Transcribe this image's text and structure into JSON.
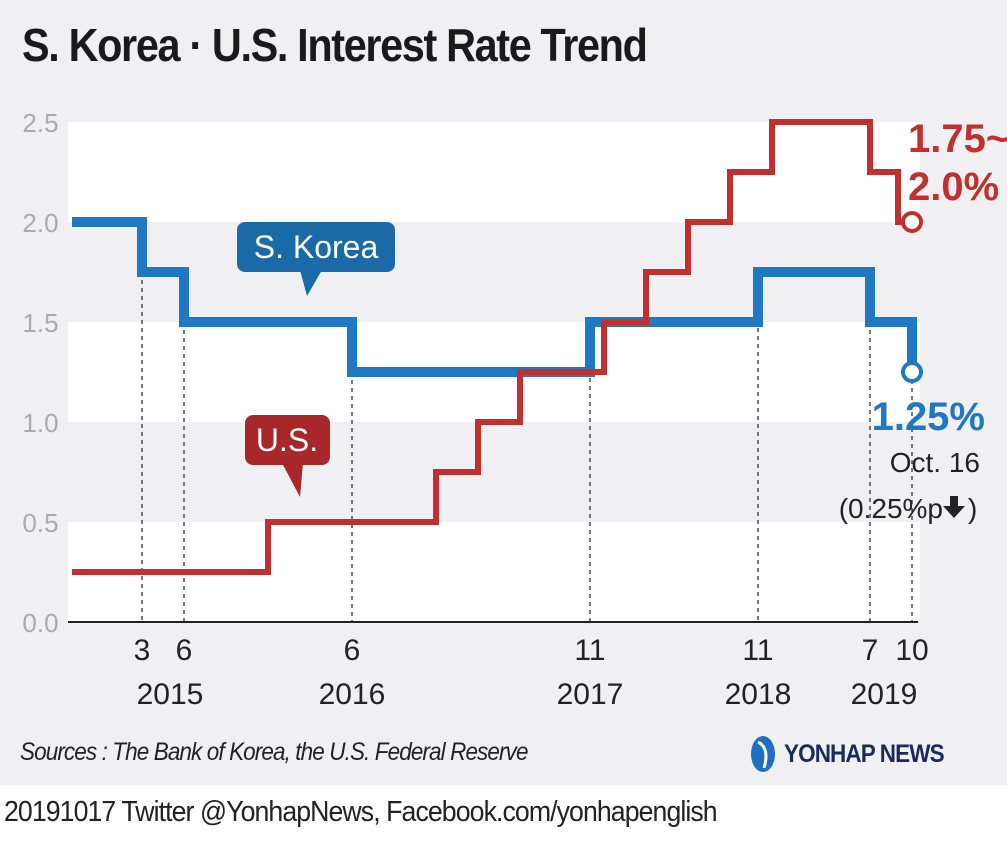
{
  "title": "S. Korea · U.S. Interest Rate Trend",
  "sources": "Sources : The Bank of Korea, the U.S. Federal Reserve",
  "logo_text": "YONHAP NEWS",
  "footer": "20191017  Twitter @YonhapNews,  Facebook.com/yonhapenglish",
  "chart_data": {
    "type": "line",
    "step": true,
    "title": "S. Korea · U.S. Interest Rate Trend",
    "ylim": [
      0,
      2.5
    ],
    "yticks": [
      "0.0",
      "0.5",
      "1.0",
      "1.5",
      "2.0",
      "2.5"
    ],
    "xrange": [
      "2014-10",
      "2019-10"
    ],
    "xticks": [
      {
        "date": "2015-03",
        "label": "3"
      },
      {
        "date": "2015-06",
        "label": "6"
      },
      {
        "date": "2016-06",
        "label": "6"
      },
      {
        "date": "2017-11",
        "label": "11"
      },
      {
        "date": "2018-11",
        "label": "11"
      },
      {
        "date": "2019-07",
        "label": "7"
      },
      {
        "date": "2019-10",
        "label": "10"
      }
    ],
    "year_labels": [
      {
        "date": "2015-05",
        "label": "2015"
      },
      {
        "date": "2016-06",
        "label": "2016"
      },
      {
        "date": "2017-11",
        "label": "2017"
      },
      {
        "date": "2018-11",
        "label": "2018"
      },
      {
        "date": "2019-08",
        "label": "2019"
      }
    ],
    "grid": "alternating bands",
    "series": [
      {
        "name": "S. Korea",
        "color": "#1f78c1",
        "points": [
          [
            "2014-10",
            2.0
          ],
          [
            "2015-03",
            1.75
          ],
          [
            "2015-06",
            1.5
          ],
          [
            "2016-06",
            1.25
          ],
          [
            "2017-11",
            1.5
          ],
          [
            "2018-11",
            1.75
          ],
          [
            "2019-07",
            1.5
          ],
          [
            "2019-10",
            1.25
          ]
        ],
        "end": "2019-10",
        "end_label": "1.25%",
        "end_note": "Oct. 16",
        "end_change": "(0.25%p",
        "end_change_icon": "down-arrow-icon"
      },
      {
        "name": "U.S.",
        "color": "#c0302e",
        "points": [
          [
            "2014-10",
            0.25
          ],
          [
            "2015-12",
            0.5
          ],
          [
            "2016-12",
            0.75
          ],
          [
            "2017-03",
            1.0
          ],
          [
            "2017-06",
            1.25
          ],
          [
            "2017-12",
            1.5
          ],
          [
            "2018-03",
            1.75
          ],
          [
            "2018-06",
            2.0
          ],
          [
            "2018-09",
            2.25
          ],
          [
            "2018-12",
            2.5
          ],
          [
            "2019-07",
            2.25
          ],
          [
            "2019-09",
            2.0
          ]
        ],
        "end": "2019-10",
        "end_label_line1": "1.75~",
        "end_label_line2": "2.0%"
      }
    ],
    "callouts": [
      {
        "text": "S. Korea",
        "color": "#1a6aa8"
      },
      {
        "text": "U.S.",
        "color": "#a8282a"
      }
    ]
  }
}
